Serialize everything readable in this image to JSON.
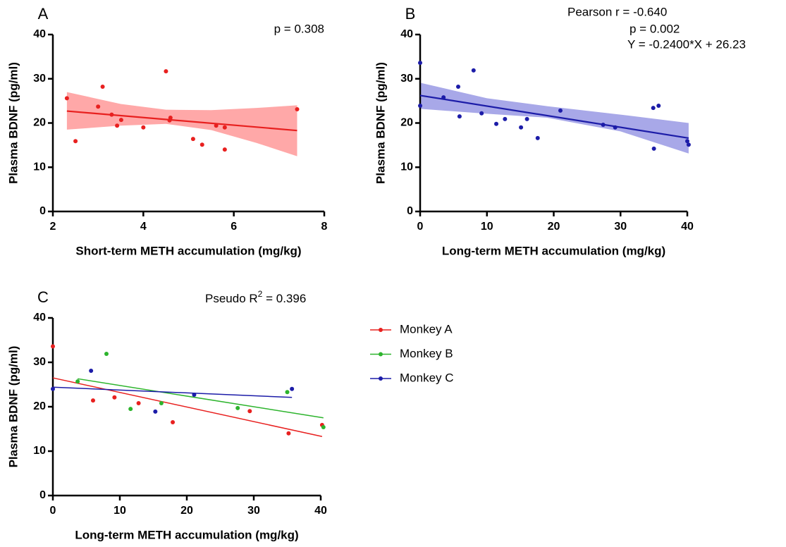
{
  "chart_data": [
    {
      "type": "scatter",
      "panel_label": "A",
      "xlabel": "Short-term METH accumulation (mg/kg)",
      "ylabel": "Plasma BDNF (pg/ml)",
      "xlim": [
        2,
        8
      ],
      "xticks": [
        2,
        4,
        6,
        8
      ],
      "ylim": [
        0,
        40
      ],
      "yticks": [
        0,
        10,
        20,
        30,
        40
      ],
      "annotations": [
        "p = 0.308"
      ],
      "series": [
        {
          "color": "#e8201f",
          "x": [
            2.31,
            2.5,
            3.0,
            3.1,
            3.3,
            3.42,
            3.51,
            4.0,
            4.5,
            4.6,
            4.58,
            5.1,
            5.3,
            5.61,
            5.8,
            5.8,
            7.4
          ],
          "values": [
            25.6,
            15.9,
            23.7,
            28.2,
            21.9,
            19.4,
            20.7,
            19.0,
            31.7,
            21.2,
            20.6,
            16.4,
            15.1,
            19.4,
            19.0,
            14.0,
            23.1
          ],
          "fit": {
            "x": [
              2.31,
              7.4
            ],
            "values": [
              22.7,
              18.3
            ]
          }
        }
      ],
      "confidence_band": {
        "color": "#ffa8a8",
        "x": [
          2.31,
          3.5,
          4.5,
          5.5,
          6.5,
          7.4
        ],
        "upper": [
          27.0,
          24.3,
          23.0,
          22.9,
          23.4,
          24.0
        ],
        "lower": [
          18.5,
          19.4,
          19.8,
          18.4,
          15.5,
          12.5
        ]
      }
    },
    {
      "type": "scatter",
      "panel_label": "B",
      "xlabel": "Long-term METH accumulation (mg/kg)",
      "ylabel": "Plasma BDNF (pg/ml)",
      "xlim": [
        0,
        40
      ],
      "xticks": [
        0,
        10,
        20,
        30,
        40
      ],
      "ylim": [
        0,
        40
      ],
      "yticks": [
        0,
        10,
        20,
        30,
        40
      ],
      "annotations": [
        "Pearson r = -0.640",
        "p = 0.002",
        "Y = -0.2400*X + 26.23"
      ],
      "series": [
        {
          "color": "#1c1ca8",
          "x": [
            0,
            0,
            3.5,
            5.7,
            5.9,
            8.0,
            9.2,
            11.4,
            12.7,
            15.1,
            16.0,
            17.6,
            21.0,
            27.4,
            29.2,
            34.9,
            35.0,
            35.7,
            40.0,
            40.2
          ],
          "values": [
            33.6,
            23.9,
            25.8,
            28.2,
            21.5,
            31.9,
            22.2,
            19.8,
            20.9,
            19.0,
            20.9,
            16.6,
            22.8,
            19.6,
            19.0,
            23.4,
            14.2,
            23.9,
            15.9,
            15.1
          ],
          "fit": {
            "x": [
              0,
              40.2
            ],
            "values": [
              26.23,
              16.58
            ]
          }
        }
      ],
      "confidence_band": {
        "color": "#a8a8e8",
        "x": [
          0,
          10,
          19,
          30,
          40.2
        ],
        "upper": [
          29.1,
          25.6,
          23.8,
          21.9,
          20.0
        ],
        "lower": [
          23.2,
          22.1,
          21.2,
          18.1,
          13.1
        ]
      }
    },
    {
      "type": "scatter",
      "panel_label": "C",
      "xlabel": "Long-term METH accumulation (mg/kg)",
      "ylabel": "Plasma BDNF (pg/ml)",
      "xlim": [
        0,
        40
      ],
      "xticks": [
        0,
        10,
        20,
        30,
        40
      ],
      "ylim": [
        0,
        40
      ],
      "yticks": [
        0,
        10,
        20,
        30,
        40
      ],
      "annotation": {
        "prefix": "Pseudo R",
        "superscript": "2",
        "suffix": " = 0.396"
      },
      "series": [
        {
          "name": "Monkey A",
          "color": "#e8201f",
          "x": [
            0,
            6.0,
            9.2,
            12.8,
            17.9,
            29.4,
            35.2,
            40.2
          ],
          "values": [
            33.6,
            21.4,
            22.1,
            20.8,
            16.5,
            19.0,
            14.0,
            15.9
          ],
          "fit": {
            "x": [
              0,
              40.2
            ],
            "values": [
              26.5,
              13.3
            ]
          }
        },
        {
          "name": "Monkey B",
          "color": "#2db42d",
          "x": [
            3.7,
            8.0,
            11.6,
            16.2,
            27.6,
            35.0,
            40.4
          ],
          "values": [
            25.7,
            31.9,
            19.5,
            20.8,
            19.7,
            23.3,
            15.4
          ],
          "fit": {
            "x": [
              3.7,
              40.4
            ],
            "values": [
              26.3,
              17.5
            ]
          }
        },
        {
          "name": "Monkey C",
          "color": "#1c1ca8",
          "x": [
            0,
            5.7,
            15.3,
            21.1,
            35.7
          ],
          "values": [
            24.0,
            28.1,
            18.9,
            22.7,
            24.0
          ],
          "fit": {
            "x": [
              0,
              35.7
            ],
            "values": [
              24.4,
              22.1
            ]
          }
        }
      ]
    }
  ]
}
